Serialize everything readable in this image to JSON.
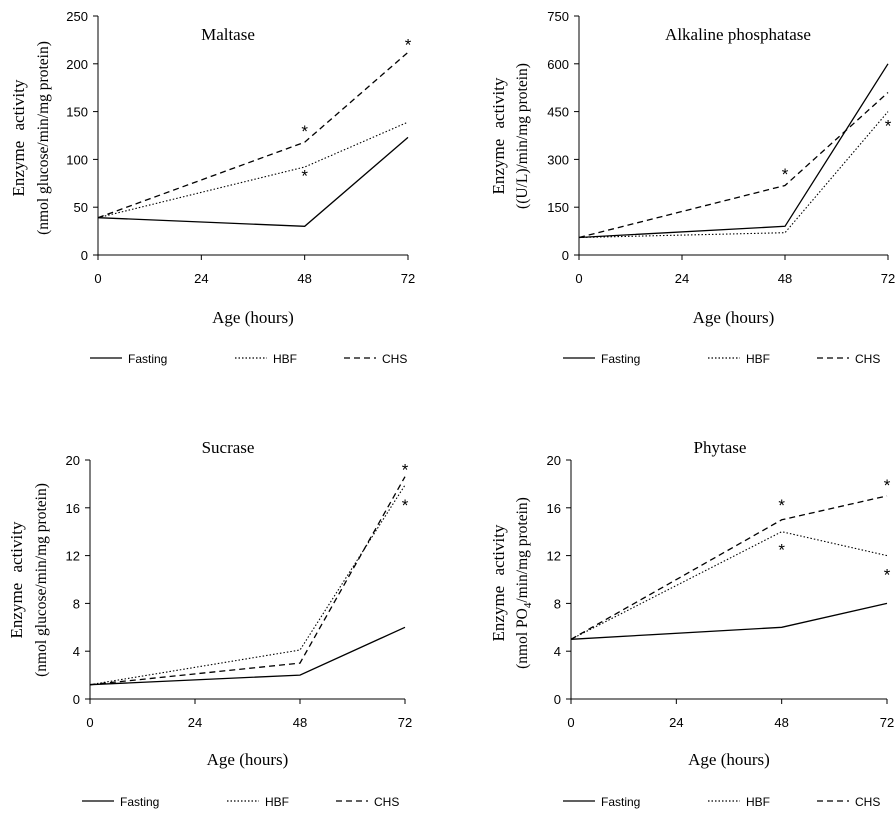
{
  "chart_data": [
    {
      "type": "line",
      "title": "Maltase",
      "xlabel": "Age (hours)",
      "ylabel": [
        "Enzyme activity",
        "(nmol glucose/min/mg protein)"
      ],
      "x": [
        0,
        48,
        72
      ],
      "xticks": [
        0,
        24,
        48,
        72
      ],
      "ylim": [
        0,
        250
      ],
      "yticks": [
        0,
        50,
        100,
        150,
        200,
        250
      ],
      "series": [
        {
          "name": "Fasting",
          "values": [
            39,
            30,
            123
          ]
        },
        {
          "name": "HBF",
          "values": [
            39,
            92,
            139
          ]
        },
        {
          "name": "CHS",
          "values": [
            39,
            118,
            212
          ]
        }
      ],
      "annotations": [
        {
          "text": "*",
          "x": 48,
          "y": 131
        },
        {
          "text": "*",
          "x": 48,
          "y": 84
        },
        {
          "text": "*",
          "x": 72,
          "y": 221
        }
      ],
      "legend": "bottom"
    },
    {
      "type": "line",
      "title": "Alkaline phosphatase",
      "xlabel": "Age (hours)",
      "ylabel": [
        "Enzyme activity",
        "((U/L)/min/mg protein)"
      ],
      "x": [
        0,
        48,
        72
      ],
      "xticks": [
        0,
        24,
        48,
        72
      ],
      "ylim": [
        0,
        750
      ],
      "yticks": [
        0,
        150,
        300,
        450,
        600,
        750
      ],
      "series": [
        {
          "name": "Fasting",
          "values": [
            55,
            90,
            600
          ]
        },
        {
          "name": "HBF",
          "values": [
            55,
            70,
            450
          ]
        },
        {
          "name": "CHS",
          "values": [
            55,
            218,
            510
          ]
        }
      ],
      "annotations": [
        {
          "text": "*",
          "x": 48,
          "y": 258
        },
        {
          "text": "*",
          "x": 72,
          "y": 410
        }
      ],
      "legend": "bottom"
    },
    {
      "type": "line",
      "title": "Sucrase",
      "xlabel": "Age (hours)",
      "ylabel": [
        "Enzyme activity",
        "(nmol glucose/min/mg protein)"
      ],
      "x": [
        0,
        48,
        72
      ],
      "xticks": [
        0,
        24,
        48,
        72
      ],
      "ylim": [
        0,
        20
      ],
      "yticks": [
        0,
        4,
        8,
        12,
        16,
        20
      ],
      "series": [
        {
          "name": "Fasting",
          "values": [
            1.2,
            2.0,
            6.0
          ]
        },
        {
          "name": "HBF",
          "values": [
            1.2,
            4.1,
            17.9
          ]
        },
        {
          "name": "CHS",
          "values": [
            1.2,
            3.0,
            18.6
          ]
        }
      ],
      "annotations": [
        {
          "text": "*",
          "x": 72,
          "y": 19.3
        },
        {
          "text": "*",
          "x": 72,
          "y": 16.3
        }
      ],
      "legend": "bottom"
    },
    {
      "type": "line",
      "title": "Phytase",
      "xlabel": "Age (hours)",
      "ylabel": [
        "Enzyme activity",
        "(nmol PO4/min/mg protein)"
      ],
      "x": [
        0,
        48,
        72
      ],
      "xticks": [
        0,
        24,
        48,
        72
      ],
      "ylim": [
        0,
        20
      ],
      "yticks": [
        0,
        4,
        8,
        12,
        16,
        20
      ],
      "series": [
        {
          "name": "Fasting",
          "values": [
            5.0,
            6.0,
            8.0
          ]
        },
        {
          "name": "HBF",
          "values": [
            5.0,
            14.0,
            12.0
          ]
        },
        {
          "name": "CHS",
          "values": [
            5.0,
            15.0,
            17.0
          ]
        }
      ],
      "annotations": [
        {
          "text": "*",
          "x": 48,
          "y": 16.3
        },
        {
          "text": "*",
          "x": 48,
          "y": 12.6
        },
        {
          "text": "*",
          "x": 72,
          "y": 18.0
        },
        {
          "text": "*",
          "x": 72,
          "y": 10.5
        }
      ],
      "legend": "bottom"
    }
  ]
}
